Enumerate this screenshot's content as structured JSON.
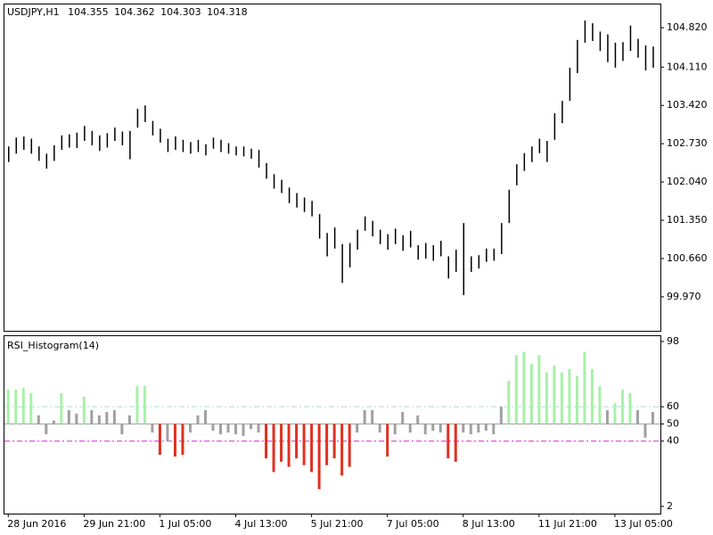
{
  "chart_data": [
    {
      "type": "ohlc",
      "symbol": "USDJPY,H1",
      "ohlc": [
        "104.355",
        "104.362",
        "104.303",
        "104.318"
      ],
      "color": "#000000",
      "ylim": [
        99.358,
        105.239
      ],
      "xlim": [
        -0.5,
        86
      ],
      "yticks": [
        {
          "value": 104.82,
          "label": "104.820"
        },
        {
          "value": 104.11,
          "label": "104.110"
        },
        {
          "value": 103.42,
          "label": "103.420"
        },
        {
          "value": 102.73,
          "label": "102.730"
        },
        {
          "value": 102.04,
          "label": "102.040"
        },
        {
          "value": 101.35,
          "label": "101.350"
        },
        {
          "value": 100.66,
          "label": "100.660"
        },
        {
          "value": 99.97,
          "label": "99.970"
        }
      ],
      "high": [
        102.68,
        102.84,
        102.86,
        102.82,
        102.68,
        102.55,
        102.7,
        102.88,
        102.9,
        102.93,
        103.05,
        102.96,
        102.88,
        102.92,
        103.02,
        102.95,
        102.96,
        103.36,
        103.42,
        103.14,
        103.0,
        102.82,
        102.86,
        102.8,
        102.76,
        102.8,
        102.72,
        102.84,
        102.8,
        102.74,
        102.68,
        102.68,
        102.64,
        102.62,
        102.38,
        102.18,
        102.08,
        101.94,
        101.84,
        101.76,
        101.7,
        101.46,
        101.12,
        101.22,
        100.92,
        100.94,
        101.18,
        101.42,
        101.34,
        101.18,
        101.1,
        101.2,
        101.08,
        101.16,
        100.9,
        100.94,
        100.9,
        100.98,
        100.7,
        100.82,
        101.3,
        100.7,
        100.72,
        100.84,
        100.84,
        101.3,
        101.9,
        102.36,
        102.56,
        102.68,
        102.82,
        102.78,
        103.28,
        103.5,
        104.1,
        104.6,
        104.95,
        104.9,
        104.75,
        104.7,
        104.55,
        104.56,
        104.86,
        104.62,
        104.5,
        104.48
      ],
      "low": [
        102.4,
        102.55,
        102.62,
        102.55,
        102.42,
        102.28,
        102.42,
        102.62,
        102.66,
        102.65,
        102.78,
        102.7,
        102.6,
        102.66,
        102.78,
        102.7,
        102.45,
        103.02,
        103.12,
        102.88,
        102.75,
        102.58,
        102.62,
        102.58,
        102.55,
        102.58,
        102.52,
        102.64,
        102.58,
        102.55,
        102.52,
        102.5,
        102.46,
        102.3,
        102.1,
        101.92,
        101.84,
        101.66,
        101.58,
        101.5,
        101.42,
        101.02,
        100.7,
        100.84,
        100.22,
        100.5,
        100.82,
        101.16,
        101.06,
        100.92,
        100.82,
        100.92,
        100.8,
        100.86,
        100.64,
        100.66,
        100.62,
        100.7,
        100.3,
        100.42,
        100.0,
        100.42,
        100.48,
        100.6,
        100.62,
        100.74,
        101.3,
        101.98,
        102.24,
        102.4,
        102.56,
        102.4,
        102.8,
        103.1,
        103.5,
        104.0,
        104.55,
        104.58,
        104.4,
        104.2,
        104.1,
        104.22,
        104.4,
        104.28,
        104.05,
        104.1
      ]
    },
    {
      "type": "histogram",
      "title": "RSI_Histogram(14)",
      "ylim": [
        -2.2,
        101.1
      ],
      "xlim": [
        -0.5,
        86
      ],
      "yticks": [
        98,
        60,
        50,
        40,
        2
      ],
      "base": 50,
      "up_level": 60,
      "down_level": 40,
      "levels": [
        60,
        50,
        40
      ],
      "level_colors": [
        "#a8dcd8",
        "#a0a0a0",
        "#e020e0"
      ],
      "colors": {
        "up": "#a8f0a8",
        "down": "#e03020",
        "neutral": "#a0a0a0"
      },
      "xticks": [
        {
          "value": 0,
          "label": "28 Jun 2016"
        },
        {
          "value": 10,
          "label": "29 Jun 21:00"
        },
        {
          "value": 20,
          "label": "1 Jul 05:00"
        },
        {
          "value": 30,
          "label": "4 Jul 13:00"
        },
        {
          "value": 40,
          "label": "5 Jul 21:00"
        },
        {
          "value": 50,
          "label": "7 Jul 05:00"
        },
        {
          "value": 60,
          "label": "8 Jul 13:00"
        },
        {
          "value": 70,
          "label": "11 Jul 21:00"
        },
        {
          "value": 80,
          "label": "13 Jul 05:00"
        }
      ],
      "values": [
        70,
        70,
        71,
        68,
        55,
        44,
        52,
        68,
        58,
        56,
        66,
        58,
        55,
        57,
        58,
        44,
        55,
        72,
        72,
        45,
        32,
        40,
        31,
        32,
        45,
        55,
        58,
        46,
        44,
        45,
        44,
        43,
        47,
        45,
        30,
        22,
        28,
        25,
        30,
        26,
        22,
        12,
        26,
        30,
        20,
        25,
        45,
        58,
        58,
        45,
        31,
        44,
        57,
        45,
        55,
        44,
        46,
        45,
        30,
        28,
        45,
        44,
        45,
        46,
        44,
        60,
        75,
        90,
        92,
        85,
        90,
        80,
        84,
        80,
        82,
        78,
        92,
        82,
        72,
        58,
        62,
        70,
        68,
        58,
        42,
        57
      ]
    }
  ]
}
